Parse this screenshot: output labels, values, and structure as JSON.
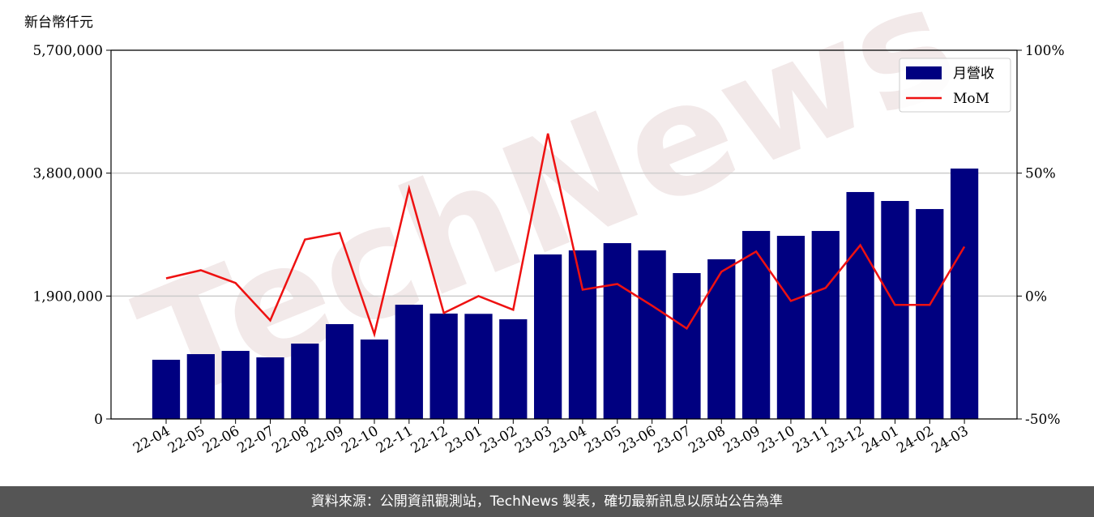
{
  "chart_data": {
    "type": "bar_line",
    "y_label": "新台幣仟元",
    "watermark": "TechNews",
    "source": "資料來源：公開資訊觀測站，TechNews 製表，確切最新訊息以原站公告為準",
    "categories": [
      "22-04",
      "22-05",
      "22-06",
      "22-07",
      "22-08",
      "22-09",
      "22-10",
      "22-11",
      "22-12",
      "23-01",
      "23-02",
      "23-03",
      "23-04",
      "23-05",
      "23-06",
      "23-07",
      "23-08",
      "23-09",
      "23-10",
      "23-11",
      "23-12",
      "24-01",
      "24-02",
      "24-03"
    ],
    "series": [
      {
        "name": "月營收",
        "type": "bar",
        "color": "#000080",
        "values": [
          915000,
          1002000,
          1052000,
          952000,
          1165000,
          1466000,
          1228000,
          1766000,
          1629000,
          1625000,
          1541000,
          2543000,
          2606000,
          2718000,
          2606000,
          2255000,
          2468000,
          2906000,
          2831000,
          2906000,
          3508000,
          3370000,
          3245000,
          3871000
        ]
      },
      {
        "name": "MoM",
        "type": "line",
        "axis": "y2",
        "color": "#ee1111",
        "values": [
          7.2,
          10.5,
          5.3,
          -9.9,
          23.0,
          25.7,
          -15.5,
          43.8,
          -6.9,
          0,
          -5.6,
          66.1,
          2.6,
          4.9,
          -3.9,
          -13.2,
          9.9,
          18.1,
          -2.0,
          3.3,
          20.7,
          -3.6,
          -3.6,
          20.1
        ]
      }
    ],
    "ylim": [
      0,
      5700000
    ],
    "yticks": [
      0,
      {
        "value": 1900000,
        "label": "1,900,000"
      },
      {
        "value": 3800000,
        "label": "3,800,000"
      },
      {
        "value": 5700000,
        "label": "5,700,000"
      }
    ],
    "y2lim": [
      -50,
      100
    ],
    "y2ticks": [
      {
        "value": -50,
        "label": "-50%"
      },
      {
        "value": 0,
        "label": "0%"
      },
      {
        "value": 50,
        "label": "50%"
      },
      {
        "value": 100,
        "label": "100%"
      }
    ],
    "grid": true,
    "legend": "upper right"
  }
}
